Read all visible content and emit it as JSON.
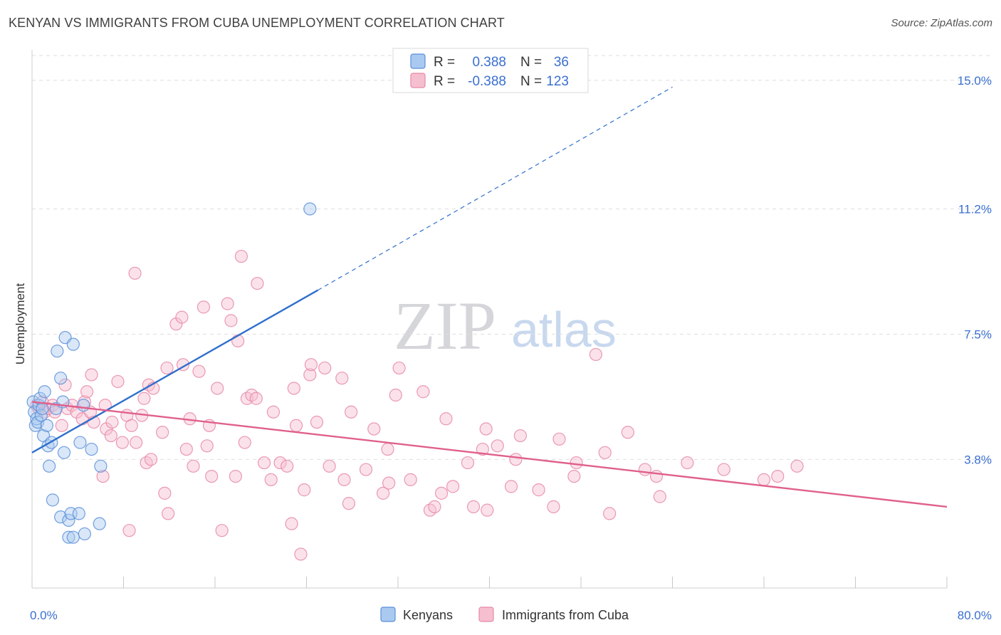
{
  "title": "KENYAN VS IMMIGRANTS FROM CUBA UNEMPLOYMENT CORRELATION CHART",
  "source": "Source: ZipAtlas.com",
  "watermark": {
    "zip": "ZIP",
    "atlas": "atlas"
  },
  "colors": {
    "kenyans_fill": "#aac9f0",
    "kenyans_stroke": "#5a8fd8",
    "kenyans_line": "#2f6fcc",
    "cuba_fill": "#f6bfd0",
    "cuba_stroke": "#e688a6",
    "cuba_line": "#e0608c",
    "tick_text": "#3a6fd0",
    "grid": "#dedede"
  },
  "chart_data": {
    "type": "scatter",
    "xlabel": "",
    "ylabel": "Unemployment",
    "xlim": [
      0,
      80
    ],
    "ylim": [
      0,
      15.9
    ],
    "x_tick_labels": [
      "0.0%",
      "80.0%"
    ],
    "y_ticks": [
      3.8,
      7.5,
      11.2,
      15.0
    ],
    "y_tick_labels": [
      "3.8%",
      "7.5%",
      "11.2%",
      "15.0%"
    ],
    "grid": true,
    "legend_position": "top-center",
    "legend": [
      {
        "r_label": "R =",
        "r_value": "0.388",
        "n_label": "N =",
        "n_value": "36"
      },
      {
        "r_label": "R =",
        "r_value": "-0.388",
        "n_label": "N =",
        "n_value": "123"
      }
    ],
    "series": [
      {
        "name": "Kenyans",
        "trend": {
          "x1": 0,
          "y1": 4.0,
          "x2": 25,
          "y2": 8.8,
          "dashed_to_x": 56,
          "dashed_to_y": 14.8
        },
        "points": [
          [
            0.1,
            5.5
          ],
          [
            0.2,
            5.2
          ],
          [
            0.3,
            4.8
          ],
          [
            0.4,
            5.0
          ],
          [
            0.5,
            4.9
          ],
          [
            0.6,
            5.4
          ],
          [
            0.7,
            5.6
          ],
          [
            0.8,
            5.1
          ],
          [
            0.9,
            5.3
          ],
          [
            1.0,
            4.5
          ],
          [
            1.1,
            5.8
          ],
          [
            1.3,
            4.8
          ],
          [
            1.4,
            4.2
          ],
          [
            1.5,
            3.6
          ],
          [
            1.7,
            4.3
          ],
          [
            1.8,
            2.6
          ],
          [
            2.1,
            5.3
          ],
          [
            2.2,
            7.0
          ],
          [
            2.5,
            6.2
          ],
          [
            2.5,
            2.1
          ],
          [
            2.7,
            5.5
          ],
          [
            2.8,
            4.0
          ],
          [
            2.9,
            7.4
          ],
          [
            3.2,
            2.0
          ],
          [
            3.2,
            1.5
          ],
          [
            3.4,
            2.2
          ],
          [
            3.6,
            7.2
          ],
          [
            3.6,
            1.5
          ],
          [
            4.1,
            2.2
          ],
          [
            4.2,
            4.3
          ],
          [
            4.5,
            5.4
          ],
          [
            4.6,
            1.6
          ],
          [
            5.2,
            4.1
          ],
          [
            5.9,
            1.9
          ],
          [
            6.0,
            3.6
          ],
          [
            24.3,
            11.2
          ]
        ]
      },
      {
        "name": "Immigrants from Cuba",
        "trend": {
          "x1": 0,
          "y1": 5.5,
          "x2": 80,
          "y2": 2.4
        },
        "points": [
          [
            0.4,
            5.4
          ],
          [
            0.6,
            5.3
          ],
          [
            0.9,
            5.5
          ],
          [
            1.1,
            5.2
          ],
          [
            1.4,
            5.3
          ],
          [
            1.8,
            5.4
          ],
          [
            2.0,
            5.2
          ],
          [
            2.6,
            4.8
          ],
          [
            2.9,
            6.0
          ],
          [
            3.1,
            5.3
          ],
          [
            3.5,
            5.4
          ],
          [
            3.9,
            5.2
          ],
          [
            4.4,
            5.0
          ],
          [
            4.6,
            5.5
          ],
          [
            4.8,
            5.8
          ],
          [
            5.1,
            5.2
          ],
          [
            5.2,
            6.3
          ],
          [
            5.4,
            4.9
          ],
          [
            6.2,
            3.3
          ],
          [
            6.4,
            5.4
          ],
          [
            6.5,
            4.7
          ],
          [
            6.9,
            4.5
          ],
          [
            7.0,
            4.9
          ],
          [
            7.5,
            6.1
          ],
          [
            7.9,
            4.3
          ],
          [
            8.3,
            5.1
          ],
          [
            8.5,
            1.7
          ],
          [
            8.7,
            4.8
          ],
          [
            9.0,
            9.3
          ],
          [
            9.1,
            4.3
          ],
          [
            9.6,
            5.1
          ],
          [
            9.8,
            5.6
          ],
          [
            10.0,
            3.7
          ],
          [
            10.2,
            6.0
          ],
          [
            10.4,
            3.8
          ],
          [
            10.6,
            5.9
          ],
          [
            11.4,
            4.6
          ],
          [
            11.6,
            2.8
          ],
          [
            11.8,
            6.5
          ],
          [
            11.9,
            2.2
          ],
          [
            12.6,
            7.8
          ],
          [
            13.1,
            8.0
          ],
          [
            13.2,
            6.6
          ],
          [
            13.5,
            4.1
          ],
          [
            13.8,
            5.0
          ],
          [
            14.1,
            3.6
          ],
          [
            14.6,
            6.4
          ],
          [
            15.0,
            8.3
          ],
          [
            15.3,
            4.2
          ],
          [
            15.5,
            4.8
          ],
          [
            15.7,
            3.3
          ],
          [
            16.2,
            5.9
          ],
          [
            16.6,
            1.7
          ],
          [
            17.1,
            8.4
          ],
          [
            17.4,
            7.9
          ],
          [
            17.8,
            3.3
          ],
          [
            18.0,
            7.3
          ],
          [
            18.3,
            9.8
          ],
          [
            18.6,
            4.3
          ],
          [
            18.8,
            5.6
          ],
          [
            19.2,
            5.7
          ],
          [
            19.6,
            5.6
          ],
          [
            19.7,
            9.0
          ],
          [
            20.3,
            3.7
          ],
          [
            20.9,
            3.2
          ],
          [
            21.1,
            5.2
          ],
          [
            21.7,
            3.7
          ],
          [
            22.3,
            3.6
          ],
          [
            22.7,
            1.9
          ],
          [
            22.9,
            5.9
          ],
          [
            23.1,
            4.8
          ],
          [
            23.5,
            1.0
          ],
          [
            23.8,
            2.9
          ],
          [
            24.3,
            6.3
          ],
          [
            24.4,
            6.6
          ],
          [
            24.9,
            4.9
          ],
          [
            25.6,
            6.5
          ],
          [
            26.0,
            3.6
          ],
          [
            27.1,
            6.2
          ],
          [
            27.3,
            3.2
          ],
          [
            27.7,
            2.5
          ],
          [
            27.9,
            5.2
          ],
          [
            29.2,
            3.5
          ],
          [
            29.9,
            4.7
          ],
          [
            30.7,
            2.8
          ],
          [
            31.1,
            4.1
          ],
          [
            31.2,
            3.1
          ],
          [
            31.8,
            5.7
          ],
          [
            32.1,
            6.5
          ],
          [
            33.1,
            3.2
          ],
          [
            34.2,
            5.8
          ],
          [
            34.8,
            2.3
          ],
          [
            35.2,
            2.4
          ],
          [
            35.8,
            2.8
          ],
          [
            36.2,
            5.0
          ],
          [
            36.8,
            3.0
          ],
          [
            38.1,
            3.7
          ],
          [
            38.6,
            2.4
          ],
          [
            39.4,
            4.1
          ],
          [
            39.7,
            4.7
          ],
          [
            39.8,
            2.3
          ],
          [
            40.7,
            4.2
          ],
          [
            41.9,
            3.0
          ],
          [
            42.3,
            3.8
          ],
          [
            42.7,
            4.5
          ],
          [
            44.3,
            2.9
          ],
          [
            45.6,
            2.4
          ],
          [
            46.1,
            4.4
          ],
          [
            47.4,
            3.3
          ],
          [
            47.6,
            3.7
          ],
          [
            49.3,
            6.9
          ],
          [
            50.1,
            4.0
          ],
          [
            50.5,
            2.2
          ],
          [
            52.1,
            4.6
          ],
          [
            53.6,
            3.5
          ],
          [
            54.6,
            3.3
          ],
          [
            54.9,
            2.7
          ],
          [
            57.3,
            3.7
          ],
          [
            60.5,
            3.5
          ],
          [
            64.0,
            3.2
          ],
          [
            65.2,
            3.3
          ],
          [
            66.9,
            3.6
          ]
        ]
      }
    ]
  },
  "bottom_legend": {
    "kenyans": "Kenyans",
    "cuba": "Immigrants from Cuba"
  }
}
